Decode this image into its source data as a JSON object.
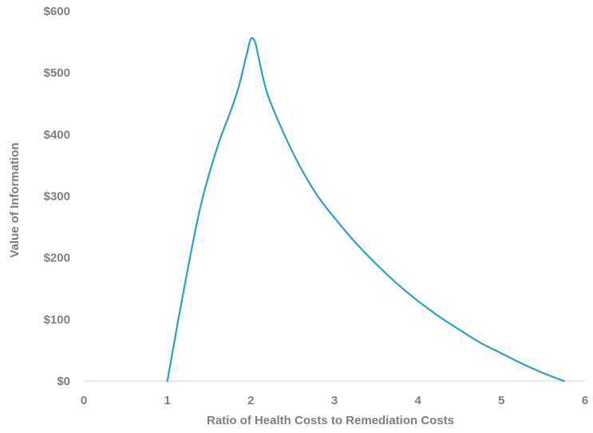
{
  "chart_data": {
    "type": "line",
    "title": "",
    "xlabel": "Ratio of Health Costs to Remediation Costs",
    "ylabel": "Value of Information",
    "xlim": [
      0,
      6
    ],
    "ylim": [
      0,
      600
    ],
    "x_ticks": [
      "0",
      "1",
      "2",
      "3",
      "4",
      "5",
      "6"
    ],
    "y_ticks": [
      "$0",
      "$100",
      "$200",
      "$300",
      "$400",
      "$500",
      "$600"
    ],
    "grid": false,
    "legend": "none",
    "series": [
      {
        "color": "#2e9fc9",
        "x": [
          1.0,
          1.2,
          1.4,
          1.6,
          1.75,
          1.85,
          1.95,
          2.0,
          2.05,
          2.1,
          2.2,
          2.4,
          2.6,
          2.8,
          3.0,
          3.25,
          3.5,
          3.75,
          4.0,
          4.25,
          4.5,
          4.75,
          5.0,
          5.25,
          5.5,
          5.75
        ],
        "y": [
          0,
          150,
          285,
          380,
          435,
          475,
          530,
          555,
          550,
          520,
          465,
          400,
          345,
          300,
          265,
          225,
          190,
          158,
          130,
          105,
          83,
          62,
          45,
          28,
          13,
          0
        ]
      }
    ]
  }
}
